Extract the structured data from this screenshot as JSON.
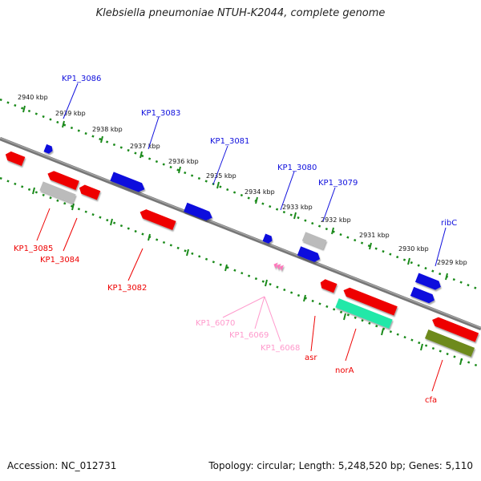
{
  "title": "Klebsiella pneumoniae NTUH-K2044, complete genome",
  "accession": "Accession: NC_012731",
  "summary": "Topology: circular; Length: 5,248,520 bp; Genes: 5,110",
  "colors": {
    "forward": "#1010dd",
    "reverse": "#ee0000",
    "pseudo": "#bbbbbb",
    "rna": "#ff99cc",
    "teal": "#22e8a8",
    "olive": "#6e8a1e",
    "backbone": "#808080",
    "ticks": "#1a8a1a"
  },
  "ticks": [
    {
      "label": "2940 kbp"
    },
    {
      "label": "2939 kbp"
    },
    {
      "label": "2938 kbp"
    },
    {
      "label": "2937 kbp"
    },
    {
      "label": "2936 kbp"
    },
    {
      "label": "2935 kbp"
    },
    {
      "label": "2934 kbp"
    },
    {
      "label": "2933 kbp"
    },
    {
      "label": "2932 kbp"
    },
    {
      "label": "2931 kbp"
    },
    {
      "label": "2930 kbp"
    },
    {
      "label": "2929 kbp"
    }
  ],
  "genes": [
    {
      "name": "KP1_3086",
      "type": "forward"
    },
    {
      "name": "KP1_3083",
      "type": "forward"
    },
    {
      "name": "KP1_3081",
      "type": "forward"
    },
    {
      "name": "KP1_3080",
      "type": "forward"
    },
    {
      "name": "KP1_3079",
      "type": "forward"
    },
    {
      "name": "ribC",
      "type": "forward"
    },
    {
      "name": "KP1_3085",
      "type": "reverse"
    },
    {
      "name": "KP1_3084",
      "type": "reverse"
    },
    {
      "name": "KP1_3082",
      "type": "reverse"
    },
    {
      "name": "KP1_6070",
      "type": "rna"
    },
    {
      "name": "KP1_6069",
      "type": "rna"
    },
    {
      "name": "KP1_6068",
      "type": "rna"
    },
    {
      "name": "asr",
      "type": "reverse"
    },
    {
      "name": "norA",
      "type": "reverse"
    },
    {
      "name": "cfa",
      "type": "reverse"
    }
  ]
}
